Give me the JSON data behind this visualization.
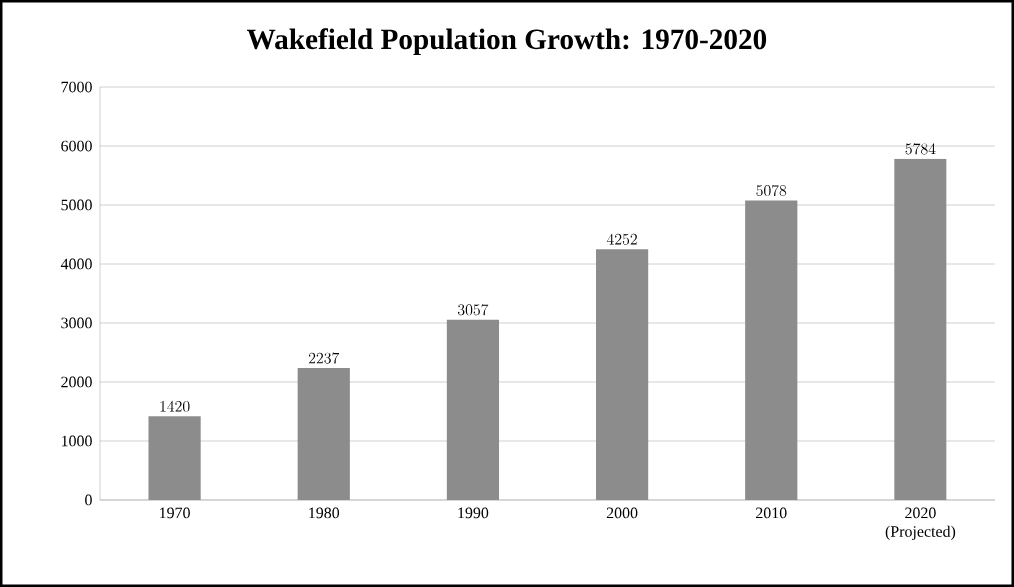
{
  "chart_data": {
    "type": "bar",
    "title": "Wakefield Population Growth: 1970-2020",
    "categories": [
      "1970",
      "1980",
      "1990",
      "2000",
      "2010",
      "2020 (Projected)"
    ],
    "values": [
      1420,
      2237,
      3057,
      4252,
      5078,
      5784
    ],
    "color": "#8c8c8c",
    "ylim": [
      0,
      7000
    ],
    "yticks": [
      0,
      1000,
      2000,
      3000,
      4000,
      5000,
      6000,
      7000
    ],
    "grid": "y",
    "data_labels": true
  }
}
